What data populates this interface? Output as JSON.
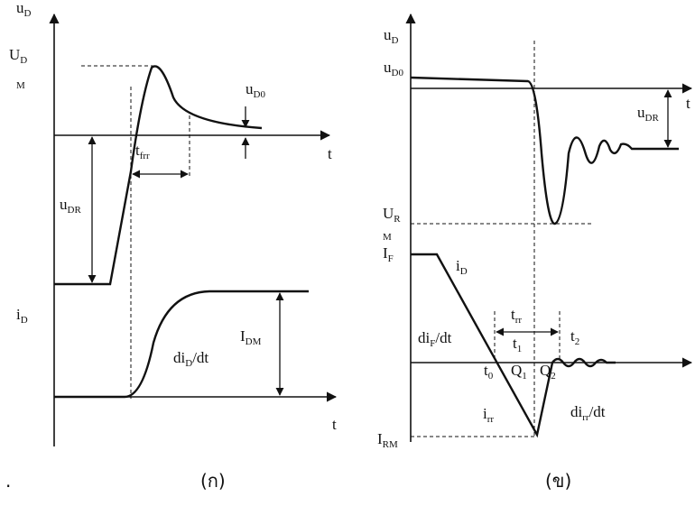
{
  "left": {
    "u_d": {
      "main": "u",
      "sub": "D"
    },
    "u_dm": {
      "main": "U",
      "sub": "D"
    },
    "u_dm_m": "M",
    "u_d0": {
      "main": "u",
      "sub": "D0"
    },
    "t_upper": "t",
    "t_frr": {
      "main": "t",
      "sub": "frr"
    },
    "u_dr": {
      "main": "u",
      "sub": "DR"
    },
    "i_d": {
      "main": "i",
      "sub": "D"
    },
    "di_d_dt": {
      "main": "di",
      "sub": "D",
      "tail": "/dt"
    },
    "i_dm": {
      "main": "I",
      "sub": "DM"
    },
    "t_lower": "t",
    "caption": "(ก)",
    "dot": "."
  },
  "right": {
    "u_d": {
      "main": "u",
      "sub": "D"
    },
    "u_d0": {
      "main": "u",
      "sub": "D0"
    },
    "t_axis": "t",
    "u_dr": {
      "main": "u",
      "sub": "DR"
    },
    "u_rm": {
      "main": "U",
      "sub": "R"
    },
    "u_rm_m": "M",
    "i_f": {
      "main": "I",
      "sub": "F"
    },
    "i_d": {
      "main": "i",
      "sub": "D"
    },
    "t_rr": {
      "main": "t",
      "sub": "rr"
    },
    "t_1": {
      "main": "t",
      "sub": "1"
    },
    "t_2": {
      "main": "t",
      "sub": "2"
    },
    "di_f_dt": {
      "main": "di",
      "sub": "F",
      "tail": "/dt"
    },
    "t_0": {
      "main": "t",
      "sub": "0"
    },
    "q_1": {
      "main": "Q",
      "sub": "1"
    },
    "q_2": {
      "main": "Q",
      "sub": "2"
    },
    "i_rr": {
      "main": "i",
      "sub": "rr"
    },
    "di_rr_dt": {
      "main": "di",
      "sub": "rr",
      "tail": "/dt"
    },
    "i_rm": {
      "main": "I",
      "sub": "RM"
    },
    "caption": "(ข)"
  }
}
